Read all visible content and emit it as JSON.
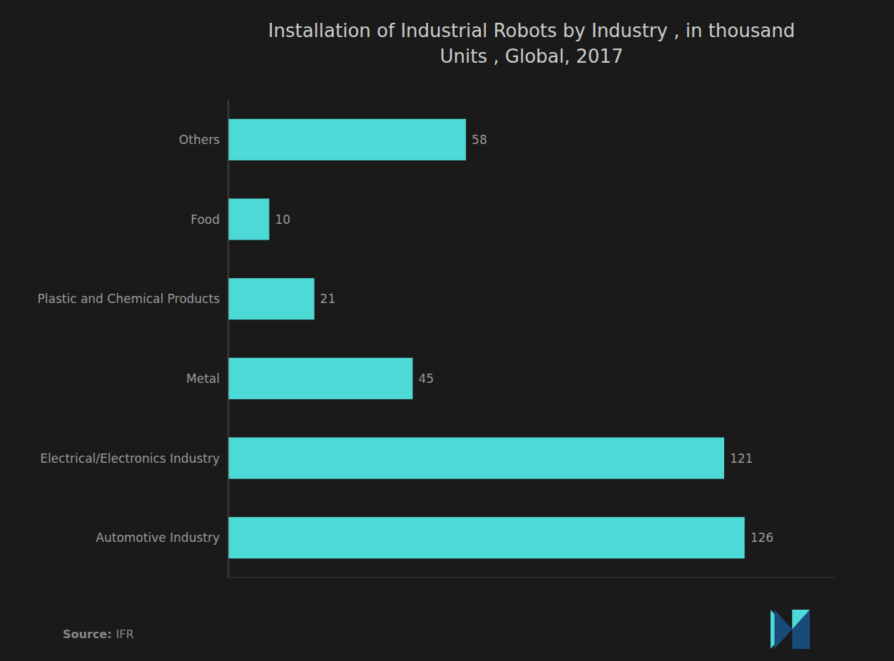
{
  "chart_data": {
    "type": "bar",
    "orientation": "horizontal",
    "title": "Installation of Industrial Robots by Industry , in thousand\nUnits , Global, 2017",
    "categories": [
      "Automotive Industry",
      "Electrical/Electronics Industry",
      "Metal",
      "Plastic and Chemical Products",
      "Food",
      "Others"
    ],
    "values": [
      126,
      121,
      45,
      21,
      10,
      58
    ],
    "color": "#4DD9D5",
    "xlim": [
      0,
      148
    ],
    "grid": false,
    "data_labels": true,
    "tick_labels": "y",
    "annotations": [
      "Source:",
      "IFR"
    ]
  }
}
